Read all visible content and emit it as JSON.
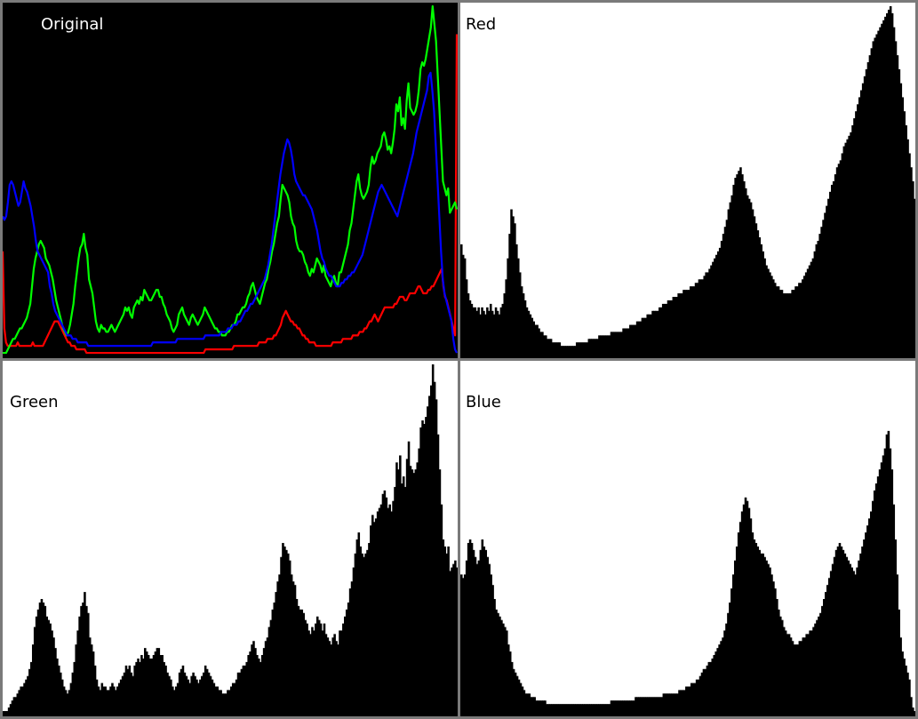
{
  "chart_data": [
    {
      "type": "line",
      "title": "Original",
      "x_range": [
        0,
        255
      ],
      "ylim": [
        0,
        100
      ],
      "grid": false,
      "series": [
        {
          "key": "red",
          "color": "#ff0000",
          "values": [
            30,
            8,
            4,
            3,
            3,
            3,
            3,
            3,
            3,
            4,
            3,
            3,
            3,
            3,
            3,
            3,
            3,
            3,
            4,
            3,
            3,
            3,
            3,
            3,
            3,
            4,
            5,
            6,
            7,
            8,
            9,
            10,
            10,
            10,
            9,
            8,
            7,
            6,
            5,
            4,
            4,
            3,
            3,
            3,
            2,
            2,
            2,
            2,
            2,
            2,
            1,
            1,
            1,
            1,
            1,
            1,
            1,
            1,
            1,
            1,
            1,
            1,
            1,
            1,
            1,
            1,
            1,
            1,
            1,
            1,
            1,
            1,
            1,
            1,
            1,
            1,
            1,
            1,
            1,
            1,
            1,
            1,
            1,
            1,
            1,
            1,
            1,
            1,
            1,
            1,
            1,
            1,
            1,
            1,
            1,
            1,
            1,
            1,
            1,
            1,
            1,
            1,
            1,
            1,
            1,
            1,
            1,
            1,
            1,
            1,
            1,
            1,
            1,
            1,
            1,
            1,
            1,
            1,
            1,
            1,
            1,
            2,
            2,
            2,
            2,
            2,
            2,
            2,
            2,
            2,
            2,
            2,
            2,
            2,
            2,
            2,
            2,
            2,
            3,
            3,
            3,
            3,
            3,
            3,
            3,
            3,
            3,
            3,
            3,
            3,
            3,
            3,
            3,
            4,
            4,
            4,
            4,
            4,
            5,
            5,
            5,
            5,
            6,
            6,
            7,
            8,
            9,
            11,
            12,
            13,
            12,
            11,
            10,
            10,
            9,
            9,
            8,
            8,
            7,
            6,
            6,
            5,
            5,
            4,
            4,
            4,
            4,
            3,
            3,
            3,
            3,
            3,
            3,
            3,
            3,
            3,
            3,
            4,
            4,
            4,
            4,
            4,
            4,
            5,
            5,
            5,
            5,
            5,
            5,
            6,
            6,
            6,
            6,
            7,
            7,
            7,
            8,
            8,
            9,
            10,
            10,
            11,
            12,
            11,
            10,
            11,
            12,
            13,
            14,
            14,
            14,
            14,
            14,
            14,
            15,
            15,
            16,
            17,
            17,
            17,
            16,
            16,
            17,
            18,
            18,
            18,
            18,
            19,
            20,
            20,
            19,
            18,
            18,
            18,
            19,
            19,
            20,
            20,
            21,
            22,
            23,
            24,
            25,
            20,
            17,
            16,
            14,
            12,
            10,
            8,
            6,
            92
          ]
        },
        {
          "key": "green",
          "color": "#00ff00",
          "values": [
            1,
            1,
            1,
            2,
            3,
            4,
            5,
            5,
            6,
            7,
            8,
            8,
            9,
            10,
            11,
            13,
            15,
            20,
            25,
            28,
            30,
            32,
            33,
            32,
            31,
            28,
            27,
            26,
            24,
            22,
            19,
            16,
            14,
            12,
            10,
            8,
            7,
            6,
            7,
            9,
            12,
            15,
            20,
            24,
            28,
            31,
            32,
            35,
            31,
            29,
            22,
            20,
            18,
            14,
            10,
            8,
            7,
            9,
            8,
            8,
            7,
            7,
            8,
            9,
            8,
            7,
            8,
            9,
            10,
            11,
            12,
            14,
            13,
            14,
            12,
            11,
            14,
            15,
            16,
            15,
            17,
            16,
            19,
            18,
            17,
            16,
            16,
            17,
            18,
            19,
            19,
            17,
            17,
            15,
            14,
            12,
            11,
            10,
            8,
            7,
            8,
            9,
            12,
            13,
            14,
            12,
            11,
            10,
            9,
            11,
            12,
            11,
            10,
            9,
            10,
            11,
            12,
            14,
            13,
            12,
            11,
            10,
            9,
            8,
            8,
            7,
            7,
            6,
            6,
            6,
            7,
            7,
            8,
            9,
            9,
            10,
            12,
            12,
            13,
            14,
            14,
            15,
            17,
            18,
            20,
            21,
            19,
            17,
            16,
            15,
            17,
            19,
            21,
            22,
            25,
            27,
            30,
            32,
            35,
            38,
            40,
            45,
            49,
            48,
            47,
            46,
            44,
            40,
            38,
            37,
            33,
            31,
            30,
            30,
            29,
            27,
            26,
            24,
            23,
            25,
            24,
            26,
            28,
            27,
            26,
            24,
            26,
            23,
            22,
            21,
            20,
            22,
            23,
            21,
            20,
            24,
            24,
            26,
            28,
            30,
            32,
            36,
            38,
            42,
            46,
            50,
            52,
            48,
            46,
            45,
            46,
            47,
            49,
            54,
            57,
            55,
            56,
            58,
            59,
            60,
            63,
            64,
            62,
            59,
            60,
            58,
            61,
            65,
            72,
            70,
            74,
            66,
            68,
            65,
            73,
            78,
            71,
            70,
            69,
            70,
            72,
            76,
            82,
            84,
            83,
            85,
            88,
            91,
            94,
            100,
            95,
            90,
            80,
            70,
            60,
            50,
            48,
            46,
            48,
            41,
            42,
            43,
            44,
            42
          ]
        },
        {
          "key": "blue",
          "color": "#0000ff",
          "values": [
            40,
            39,
            40,
            44,
            49,
            50,
            49,
            47,
            45,
            43,
            44,
            47,
            50,
            48,
            47,
            45,
            43,
            40,
            37,
            33,
            30,
            29,
            28,
            27,
            26,
            25,
            24,
            20,
            18,
            15,
            13,
            12,
            11,
            10,
            9,
            8,
            7,
            6,
            6,
            6,
            5,
            5,
            5,
            4,
            4,
            4,
            4,
            4,
            4,
            3,
            3,
            3,
            3,
            3,
            3,
            3,
            3,
            3,
            3,
            3,
            3,
            3,
            3,
            3,
            3,
            3,
            3,
            3,
            3,
            3,
            3,
            3,
            3,
            3,
            3,
            3,
            3,
            3,
            3,
            3,
            3,
            3,
            3,
            3,
            3,
            3,
            4,
            4,
            4,
            4,
            4,
            4,
            4,
            4,
            4,
            4,
            4,
            4,
            4,
            4,
            5,
            5,
            5,
            5,
            5,
            5,
            5,
            5,
            5,
            5,
            5,
            5,
            5,
            5,
            5,
            5,
            6,
            6,
            6,
            6,
            6,
            6,
            6,
            6,
            6,
            7,
            7,
            7,
            7,
            8,
            8,
            8,
            9,
            9,
            9,
            10,
            10,
            11,
            12,
            13,
            13,
            14,
            15,
            15,
            16,
            17,
            18,
            19,
            20,
            21,
            22,
            24,
            26,
            29,
            32,
            36,
            40,
            44,
            48,
            52,
            55,
            58,
            60,
            62,
            61,
            59,
            56,
            52,
            50,
            49,
            48,
            47,
            46,
            46,
            45,
            44,
            43,
            42,
            40,
            38,
            36,
            33,
            30,
            28,
            27,
            25,
            24,
            23,
            23,
            22,
            21,
            20,
            20,
            20,
            21,
            21,
            22,
            22,
            23,
            23,
            24,
            24,
            25,
            26,
            27,
            28,
            29,
            31,
            33,
            35,
            37,
            39,
            41,
            43,
            45,
            47,
            48,
            49,
            48,
            47,
            46,
            45,
            44,
            43,
            42,
            41,
            40,
            42,
            44,
            46,
            48,
            50,
            52,
            54,
            56,
            58,
            61,
            64,
            66,
            68,
            70,
            72,
            74,
            76,
            80,
            81,
            76,
            70,
            60,
            50,
            40,
            30,
            22,
            18,
            16,
            14,
            12,
            10,
            5,
            2,
            1
          ]
        }
      ]
    },
    {
      "type": "bar",
      "title": "Red",
      "x_range": [
        0,
        255
      ],
      "ylim": [
        0,
        100
      ],
      "grid": false,
      "fill": "#000000",
      "series_ref": "red",
      "values": [
        32,
        29,
        28,
        22,
        18,
        16,
        15,
        14,
        14,
        13,
        14,
        12,
        14,
        13,
        12,
        14,
        13,
        15,
        13,
        12,
        14,
        13,
        12,
        14,
        15,
        18,
        22,
        28,
        35,
        42,
        40,
        38,
        32,
        28,
        24,
        20,
        18,
        16,
        14,
        13,
        12,
        11,
        10,
        9,
        9,
        8,
        7,
        7,
        6,
        6,
        5,
        5,
        5,
        4,
        4,
        4,
        4,
        4,
        3,
        3,
        3,
        3,
        3,
        3,
        3,
        3,
        3,
        4,
        4,
        4,
        4,
        4,
        4,
        4,
        5,
        5,
        5,
        5,
        5,
        5,
        6,
        6,
        6,
        6,
        6,
        6,
        6,
        7,
        7,
        7,
        7,
        7,
        7,
        7,
        8,
        8,
        8,
        8,
        9,
        9,
        9,
        9,
        10,
        10,
        10,
        11,
        11,
        11,
        12,
        12,
        12,
        13,
        13,
        13,
        13,
        14,
        14,
        15,
        15,
        15,
        16,
        16,
        16,
        17,
        17,
        17,
        18,
        18,
        18,
        19,
        19,
        19,
        19,
        20,
        20,
        20,
        21,
        21,
        22,
        22,
        22,
        23,
        24,
        24,
        25,
        26,
        27,
        28,
        29,
        30,
        31,
        33,
        35,
        37,
        39,
        42,
        44,
        46,
        49,
        51,
        52,
        53,
        54,
        52,
        50,
        48,
        46,
        45,
        44,
        42,
        40,
        38,
        36,
        34,
        32,
        30,
        28,
        26,
        25,
        24,
        23,
        22,
        21,
        20,
        20,
        19,
        19,
        18,
        18,
        18,
        18,
        18,
        19,
        19,
        20,
        20,
        21,
        21,
        22,
        23,
        24,
        25,
        26,
        27,
        28,
        30,
        32,
        33,
        35,
        37,
        39,
        41,
        43,
        45,
        47,
        49,
        50,
        52,
        54,
        55,
        56,
        58,
        60,
        61,
        62,
        63,
        64,
        66,
        68,
        70,
        72,
        74,
        76,
        78,
        80,
        82,
        84,
        86,
        88,
        90,
        91,
        92,
        93,
        94,
        95,
        96,
        97,
        98,
        99,
        100,
        98,
        94,
        90,
        86,
        82,
        78,
        74,
        70,
        66,
        62,
        58,
        54,
        50,
        45
      ]
    },
    {
      "type": "bar",
      "title": "Green",
      "x_range": [
        0,
        255
      ],
      "ylim": [
        0,
        100
      ],
      "grid": false,
      "fill": "#000000",
      "series_ref": "green"
    },
    {
      "type": "bar",
      "title": "Blue",
      "x_range": [
        0,
        255
      ],
      "ylim": [
        0,
        100
      ],
      "grid": false,
      "fill": "#000000",
      "series_ref": "blue"
    }
  ],
  "panels": {
    "original": {
      "title": "Original"
    },
    "red": {
      "title": "Red"
    },
    "green": {
      "title": "Green"
    },
    "blue": {
      "title": "Blue"
    }
  },
  "colors": {
    "bg_original": "#000000",
    "bg_hist": "#ffffff",
    "frame": "#7a7a7a"
  }
}
